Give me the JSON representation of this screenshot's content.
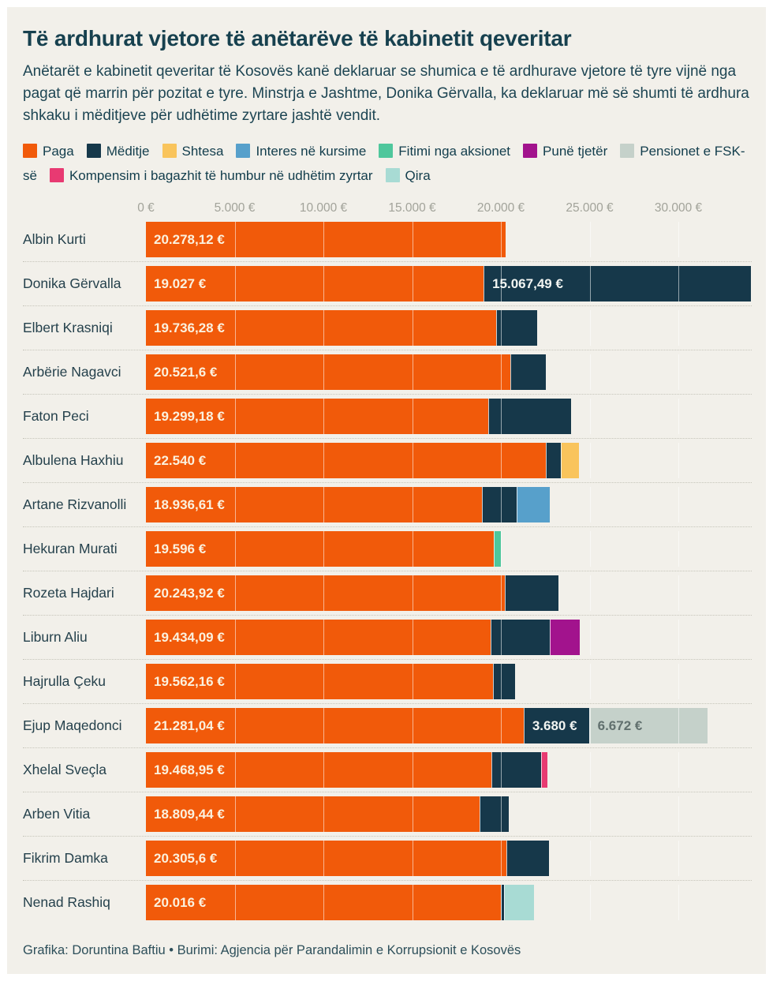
{
  "title": "Të ardhurat vjetore të anëtarëve të kabinetit qeveritar",
  "subtitle": "Anëtarët e kabinetit qeveritar të Kosovës kanë deklaruar se shumica e të ardhurave vjetore të tyre vijnë nga pagat që marrin për pozitat e tyre. Minstrja e Jashtme, Donika Gërvalla, ka deklaruar më së shumti të ardhura shkaku i mëditjeve për udhëtime zyrtare jashtë vendit.",
  "credit": "Grafika: Doruntina Baftiu • Burimi: Agjencia për Parandalimin e Korrupsionit e Kosovës",
  "colors": {
    "background": "#F2F0EA",
    "paga": "#F15A0A",
    "meditje": "#16384A",
    "shtesa": "#F9C45C",
    "interes": "#57A0CB",
    "fitimi": "#4FC79C",
    "pune": "#A2138D",
    "pensionet": "#C5D1CA",
    "kompensim": "#E83A72",
    "qira": "#A8DBD4"
  },
  "legend": [
    {
      "key": "paga",
      "label": "Paga"
    },
    {
      "key": "meditje",
      "label": "Mëditje"
    },
    {
      "key": "shtesa",
      "label": "Shtesa"
    },
    {
      "key": "interes",
      "label": "Interes në kursime"
    },
    {
      "key": "fitimi",
      "label": "Fitimi nga aksionet"
    },
    {
      "key": "pune",
      "label": "Punë tjetër"
    },
    {
      "key": "pensionet",
      "label": "Pensionet e FSK-së"
    },
    {
      "key": "kompensim",
      "label": "Kompensim i bagazhit të humbur në udhëtim zyrtar"
    },
    {
      "key": "qira",
      "label": "Qira"
    }
  ],
  "chart_data": {
    "type": "bar",
    "orientation": "horizontal",
    "stacked": true,
    "unit": "€",
    "xlim": [
      0,
      34100
    ],
    "grid": true,
    "legend_position": "top",
    "x_ticks": [
      {
        "value": 0,
        "label": "0 €"
      },
      {
        "value": 5000,
        "label": "5.000 €"
      },
      {
        "value": 10000,
        "label": "10.000 €"
      },
      {
        "value": 15000,
        "label": "15.000 €"
      },
      {
        "value": 20000,
        "label": "20.000 €"
      },
      {
        "value": 25000,
        "label": "25.000 €"
      },
      {
        "value": 30000,
        "label": "30.000 €"
      }
    ],
    "rows": [
      {
        "name": "Albin Kurti",
        "segments": [
          {
            "key": "paga",
            "value": 20278.12,
            "label": "20.278,12 €"
          }
        ]
      },
      {
        "name": "Donika Gërvalla",
        "segments": [
          {
            "key": "paga",
            "value": 19027,
            "label": "19.027 €"
          },
          {
            "key": "meditje",
            "value": 15067.49,
            "label": "15.067,49 €"
          }
        ]
      },
      {
        "name": "Elbert Krasniqi",
        "segments": [
          {
            "key": "paga",
            "value": 19736.28,
            "label": "19.736,28 €"
          },
          {
            "key": "meditje",
            "value": 2300
          }
        ]
      },
      {
        "name": "Arbërie Nagavci",
        "segments": [
          {
            "key": "paga",
            "value": 20521.6,
            "label": "20.521,6 €"
          },
          {
            "key": "meditje",
            "value": 2000
          }
        ]
      },
      {
        "name": "Faton Peci",
        "segments": [
          {
            "key": "paga",
            "value": 19299.18,
            "label": "19.299,18 €"
          },
          {
            "key": "meditje",
            "value": 4650
          }
        ]
      },
      {
        "name": "Albulena Haxhiu",
        "segments": [
          {
            "key": "paga",
            "value": 22540,
            "label": "22.540 €"
          },
          {
            "key": "meditje",
            "value": 850
          },
          {
            "key": "shtesa",
            "value": 1000
          }
        ]
      },
      {
        "name": "Artane Rizvanolli",
        "segments": [
          {
            "key": "paga",
            "value": 18936.61,
            "label": "18.936,61 €"
          },
          {
            "key": "meditje",
            "value": 1950
          },
          {
            "key": "interes",
            "value": 1850
          }
        ]
      },
      {
        "name": "Hekuran Murati",
        "segments": [
          {
            "key": "paga",
            "value": 19596,
            "label": "19.596 €"
          },
          {
            "key": "fitimi",
            "value": 400
          }
        ]
      },
      {
        "name": "Rozeta Hajdari",
        "segments": [
          {
            "key": "paga",
            "value": 20243.92,
            "label": "20.243,92 €"
          },
          {
            "key": "meditje",
            "value": 3000
          }
        ]
      },
      {
        "name": "Liburn Aliu",
        "segments": [
          {
            "key": "paga",
            "value": 19434.09,
            "label": "19.434,09 €"
          },
          {
            "key": "meditje",
            "value": 3300
          },
          {
            "key": "pune",
            "value": 1700
          }
        ]
      },
      {
        "name": "Hajrulla Çeku",
        "segments": [
          {
            "key": "paga",
            "value": 19562.16,
            "label": "19.562,16 €"
          },
          {
            "key": "meditje",
            "value": 1250
          }
        ]
      },
      {
        "name": "Ejup Maqedonci",
        "segments": [
          {
            "key": "paga",
            "value": 21281.04,
            "label": "21.281,04 €"
          },
          {
            "key": "meditje",
            "value": 3680,
            "label": "3.680 €"
          },
          {
            "key": "pensionet",
            "value": 6672,
            "label": "6.672 €"
          }
        ]
      },
      {
        "name": "Xhelal Sveçla",
        "segments": [
          {
            "key": "paga",
            "value": 19468.95,
            "label": "19.468,95 €"
          },
          {
            "key": "meditje",
            "value": 2800
          },
          {
            "key": "kompensim",
            "value": 350
          }
        ]
      },
      {
        "name": "Arben Vitia",
        "segments": [
          {
            "key": "paga",
            "value": 18809.44,
            "label": "18.809,44 €"
          },
          {
            "key": "meditje",
            "value": 1650
          }
        ]
      },
      {
        "name": "Fikrim Damka",
        "segments": [
          {
            "key": "paga",
            "value": 20305.6,
            "label": "20.305,6 €"
          },
          {
            "key": "meditje",
            "value": 2400
          }
        ]
      },
      {
        "name": "Nenad Rashiq",
        "segments": [
          {
            "key": "paga",
            "value": 20016,
            "label": "20.016 €"
          },
          {
            "key": "meditje",
            "value": 150
          },
          {
            "key": "qira",
            "value": 1700
          }
        ]
      }
    ]
  }
}
